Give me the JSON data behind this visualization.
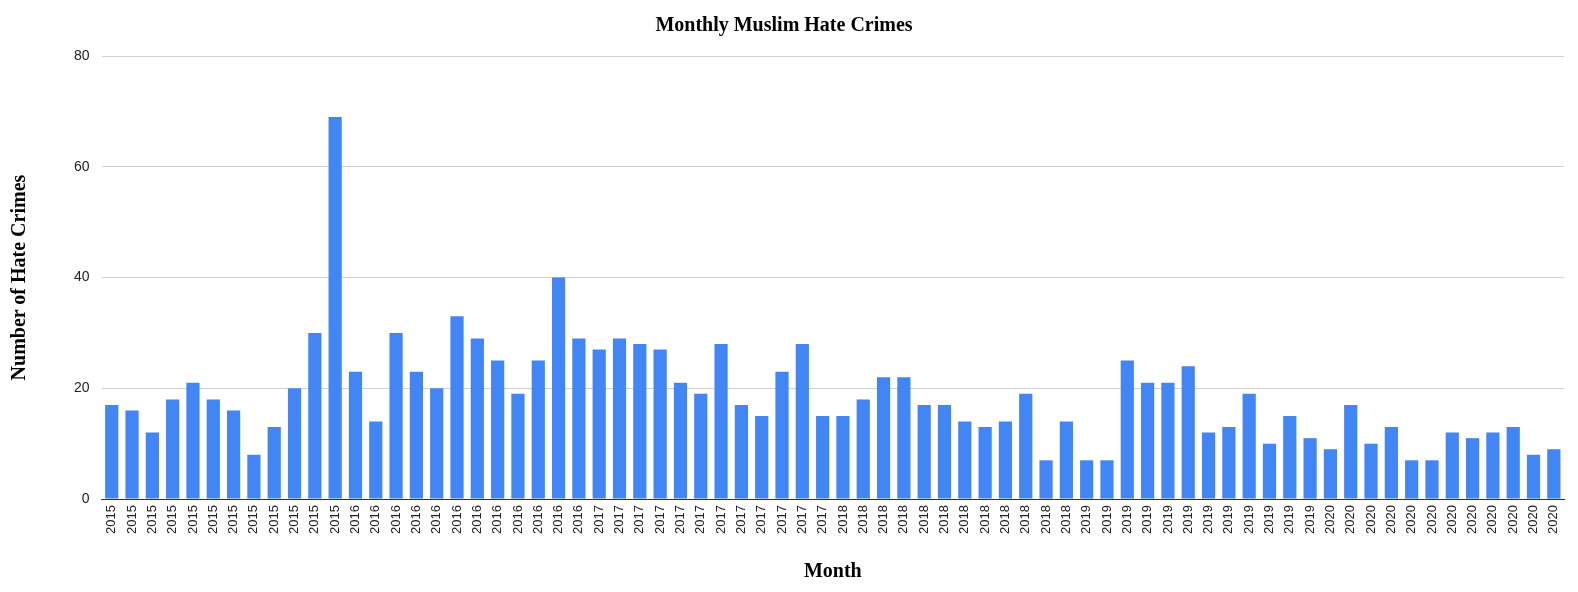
{
  "chart_data": {
    "type": "bar",
    "title": "Monthly Muslim Hate Crimes",
    "xlabel": "Month",
    "ylabel": "Number of Hate Crimes",
    "categories": [
      "2015",
      "2015",
      "2015",
      "2015",
      "2015",
      "2015",
      "2015",
      "2015",
      "2015",
      "2015",
      "2015",
      "2015",
      "2016",
      "2016",
      "2016",
      "2016",
      "2016",
      "2016",
      "2016",
      "2016",
      "2016",
      "2016",
      "2016",
      "2016",
      "2017",
      "2017",
      "2017",
      "2017",
      "2017",
      "2017",
      "2017",
      "2017",
      "2017",
      "2017",
      "2017",
      "2017",
      "2018",
      "2018",
      "2018",
      "2018",
      "2018",
      "2018",
      "2018",
      "2018",
      "2018",
      "2018",
      "2018",
      "2018",
      "2019",
      "2019",
      "2019",
      "2019",
      "2019",
      "2019",
      "2019",
      "2019",
      "2019",
      "2019",
      "2019",
      "2019",
      "2020",
      "2020",
      "2020",
      "2020",
      "2020",
      "2020",
      "2020",
      "2020",
      "2020",
      "2020",
      "2020",
      "2020"
    ],
    "values": [
      17,
      16,
      12,
      18,
      21,
      18,
      16,
      8,
      13,
      20,
      30,
      69,
      23,
      14,
      30,
      23,
      20,
      33,
      29,
      25,
      19,
      25,
      40,
      29,
      27,
      29,
      28,
      27,
      21,
      19,
      28,
      17,
      15,
      23,
      28,
      15,
      15,
      18,
      22,
      22,
      17,
      17,
      14,
      13,
      14,
      19,
      7,
      14,
      7,
      7,
      25,
      21,
      21,
      24,
      12,
      13,
      19,
      10,
      15,
      11,
      9,
      17,
      10,
      13,
      7,
      7,
      12,
      11,
      12,
      13,
      8,
      9
    ],
    "color": "#4285f4",
    "ylim": [
      0,
      80
    ],
    "yticks": [
      0,
      20,
      40,
      60,
      80
    ],
    "grid": "y",
    "legend": false
  }
}
